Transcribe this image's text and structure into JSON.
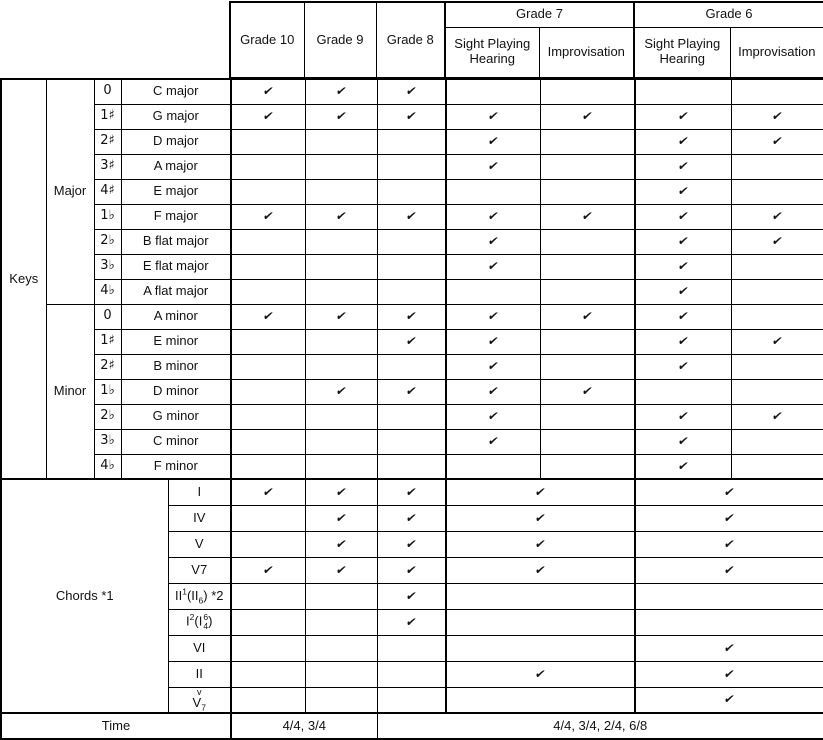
{
  "colors": {
    "border": "#000000",
    "background": "#ffffff",
    "text": "#111111"
  },
  "check_glyph": "✔",
  "header": {
    "grades": [
      "Grade 10",
      "Grade 9",
      "Grade 8"
    ],
    "split_grades": [
      {
        "label": "Grade 7",
        "sub": [
          [
            "Sight Playing",
            "Hearing"
          ],
          [
            "Improvisation"
          ]
        ]
      },
      {
        "label": "Grade 6",
        "sub": [
          [
            "Sight Playing",
            "Hearing"
          ],
          [
            "Improvisation"
          ]
        ]
      }
    ]
  },
  "keys": {
    "section_label": "Keys",
    "groups": [
      {
        "label": "Major",
        "rows": [
          {
            "acc": "0",
            "name": "C major",
            "checks": [
              1,
              1,
              1,
              0,
              0,
              0,
              0
            ]
          },
          {
            "acc": "1♯",
            "name": "G major",
            "checks": [
              1,
              1,
              1,
              1,
              1,
              1,
              1
            ]
          },
          {
            "acc": "2♯",
            "name": "D major",
            "checks": [
              0,
              0,
              0,
              1,
              0,
              1,
              1
            ]
          },
          {
            "acc": "3♯",
            "name": "A major",
            "checks": [
              0,
              0,
              0,
              1,
              0,
              1,
              0
            ]
          },
          {
            "acc": "4♯",
            "name": "E major",
            "checks": [
              0,
              0,
              0,
              0,
              0,
              1,
              0
            ]
          },
          {
            "acc": "1♭",
            "name": "F major",
            "checks": [
              1,
              1,
              1,
              1,
              1,
              1,
              1
            ]
          },
          {
            "acc": "2♭",
            "name": "B flat major",
            "checks": [
              0,
              0,
              0,
              1,
              0,
              1,
              1
            ]
          },
          {
            "acc": "3♭",
            "name": "E flat major",
            "checks": [
              0,
              0,
              0,
              1,
              0,
              1,
              0
            ]
          },
          {
            "acc": "4♭",
            "name": "A flat major",
            "checks": [
              0,
              0,
              0,
              0,
              0,
              1,
              0
            ]
          }
        ]
      },
      {
        "label": "Minor",
        "rows": [
          {
            "acc": "0",
            "name": "A minor",
            "checks": [
              1,
              1,
              1,
              1,
              1,
              1,
              0
            ]
          },
          {
            "acc": "1♯",
            "name": "E minor",
            "checks": [
              0,
              0,
              1,
              1,
              0,
              1,
              1
            ]
          },
          {
            "acc": "2♯",
            "name": "B minor",
            "checks": [
              0,
              0,
              0,
              1,
              0,
              1,
              0
            ]
          },
          {
            "acc": "1♭",
            "name": "D minor",
            "checks": [
              0,
              1,
              1,
              1,
              1,
              0,
              0
            ]
          },
          {
            "acc": "2♭",
            "name": "G minor",
            "checks": [
              0,
              0,
              0,
              1,
              0,
              1,
              1
            ]
          },
          {
            "acc": "3♭",
            "name": "C minor",
            "checks": [
              0,
              0,
              0,
              1,
              0,
              1,
              0
            ]
          },
          {
            "acc": "4♭",
            "name": "F minor",
            "checks": [
              0,
              0,
              0,
              0,
              0,
              1,
              0
            ]
          }
        ]
      }
    ]
  },
  "chords": {
    "section_label": "Chords *1",
    "rows": [
      {
        "name": "I",
        "label": [
          {
            "t": "I"
          }
        ],
        "checks": [
          1,
          1,
          1,
          1,
          1
        ]
      },
      {
        "name": "IV",
        "label": [
          {
            "t": "IV"
          }
        ],
        "checks": [
          0,
          1,
          1,
          1,
          1
        ]
      },
      {
        "name": "V",
        "label": [
          {
            "t": "V"
          }
        ],
        "checks": [
          0,
          1,
          1,
          1,
          1
        ]
      },
      {
        "name": "V7",
        "label": [
          {
            "t": "V7"
          }
        ],
        "checks": [
          1,
          1,
          1,
          1,
          1
        ]
      },
      {
        "name": "II1(II6) *2",
        "label": [
          {
            "t": "II"
          },
          {
            "sup": "1"
          },
          {
            "t": "(II"
          },
          {
            "sub": "6"
          },
          {
            "t": ") *2"
          }
        ],
        "checks": [
          0,
          0,
          1,
          0,
          0
        ]
      },
      {
        "name": "I2(I64)",
        "label": [
          {
            "t": "I"
          },
          {
            "sup": "2"
          },
          {
            "t": "(I"
          },
          {
            "ss": [
              "6",
              "4"
            ]
          },
          {
            "t": ")"
          }
        ],
        "checks": [
          0,
          0,
          1,
          0,
          0
        ]
      },
      {
        "name": "VI",
        "label": [
          {
            "t": "VI"
          }
        ],
        "checks": [
          0,
          0,
          0,
          0,
          1
        ]
      },
      {
        "name": "II",
        "label": [
          {
            "t": "II"
          }
        ],
        "checks": [
          0,
          0,
          0,
          1,
          1
        ]
      },
      {
        "name": "v-V7",
        "label": [
          {
            "top": "v"
          },
          {
            "t": "V"
          },
          {
            "sub": "7"
          }
        ],
        "checks": [
          0,
          0,
          0,
          0,
          1
        ]
      }
    ]
  },
  "time": {
    "section_label": "Time",
    "cells": [
      {
        "value": "4/4, 3/4"
      },
      {
        "value": "4/4, 3/4, 2/4, 6/8"
      }
    ]
  }
}
